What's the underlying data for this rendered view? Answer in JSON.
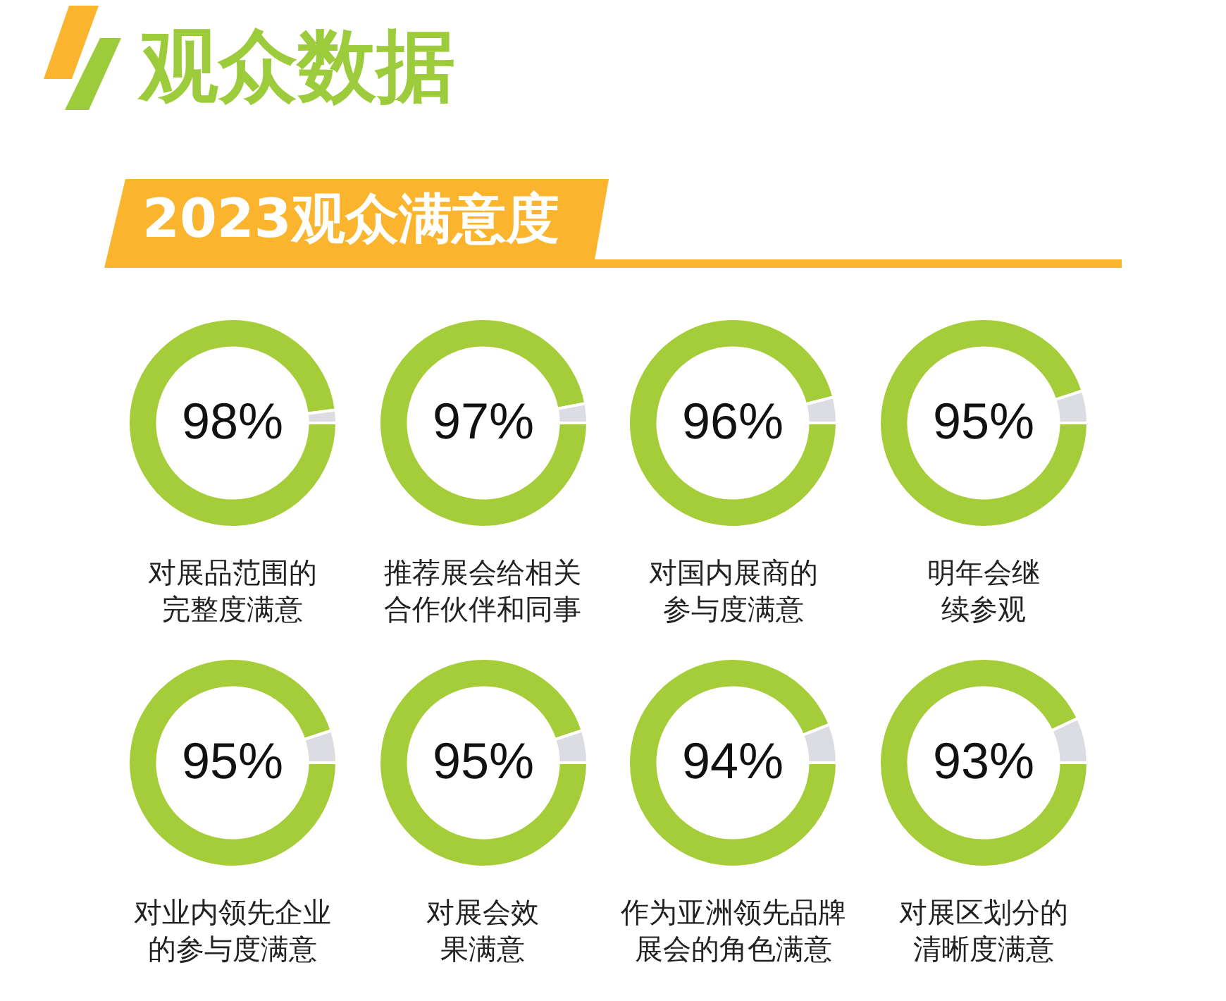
{
  "chart_data": [
    {
      "type": "other",
      "title": "观众数据",
      "subtitle": "2023观众满意度"
    },
    {
      "type": "donut",
      "title": "对展品范围的完整度满意",
      "categories": [
        null,
        null
      ],
      "values": [
        98,
        2
      ],
      "colors": [
        "#a5cd39",
        "#dcdce3"
      ],
      "value_labels": [
        "98%",
        null
      ]
    },
    {
      "type": "donut",
      "title": "推荐展会给相关合作伙伴和同事",
      "categories": [
        null,
        null
      ],
      "values": [
        97,
        3
      ],
      "colors": [
        "#a5cd39",
        "#dcdce3"
      ],
      "value_labels": [
        "97%",
        null
      ]
    },
    {
      "type": "donut",
      "title": "对国内展商的参与度满意",
      "categories": [
        null,
        null
      ],
      "values": [
        96,
        4
      ],
      "colors": [
        "#a5cd39",
        "#dcdce3"
      ],
      "value_labels": [
        "96%",
        null
      ]
    },
    {
      "type": "donut",
      "title": "明年会继续参观",
      "categories": [
        null,
        null
      ],
      "values": [
        95,
        5
      ],
      "colors": [
        "#a5cd39",
        "#dcdce3"
      ],
      "value_labels": [
        "95%",
        null
      ]
    },
    {
      "type": "donut",
      "title": "对业内领先企业的参与度满意",
      "categories": [
        null,
        null
      ],
      "values": [
        95,
        5
      ],
      "colors": [
        "#a5cd39",
        "#dcdce3"
      ],
      "value_labels": [
        "95%",
        null
      ]
    },
    {
      "type": "donut",
      "title": "对展会效果满意",
      "categories": [
        null,
        null
      ],
      "values": [
        95,
        5
      ],
      "colors": [
        "#a5cd39",
        "#dcdce3"
      ],
      "value_labels": [
        "95%",
        null
      ]
    },
    {
      "type": "donut",
      "title": "作为亚洲领先品牌展会的角色满意",
      "categories": [
        null,
        null
      ],
      "values": [
        94,
        6
      ],
      "colors": [
        "#a5cd39",
        "#dcdce3"
      ],
      "value_labels": [
        "94%",
        null
      ]
    },
    {
      "type": "donut",
      "title": "对展区划分的清晰度满意",
      "categories": [
        null,
        null
      ],
      "values": [
        93,
        7
      ],
      "colors": [
        "#a5cd39",
        "#dcdce3"
      ],
      "value_labels": [
        "93%",
        null
      ]
    }
  ]
}
